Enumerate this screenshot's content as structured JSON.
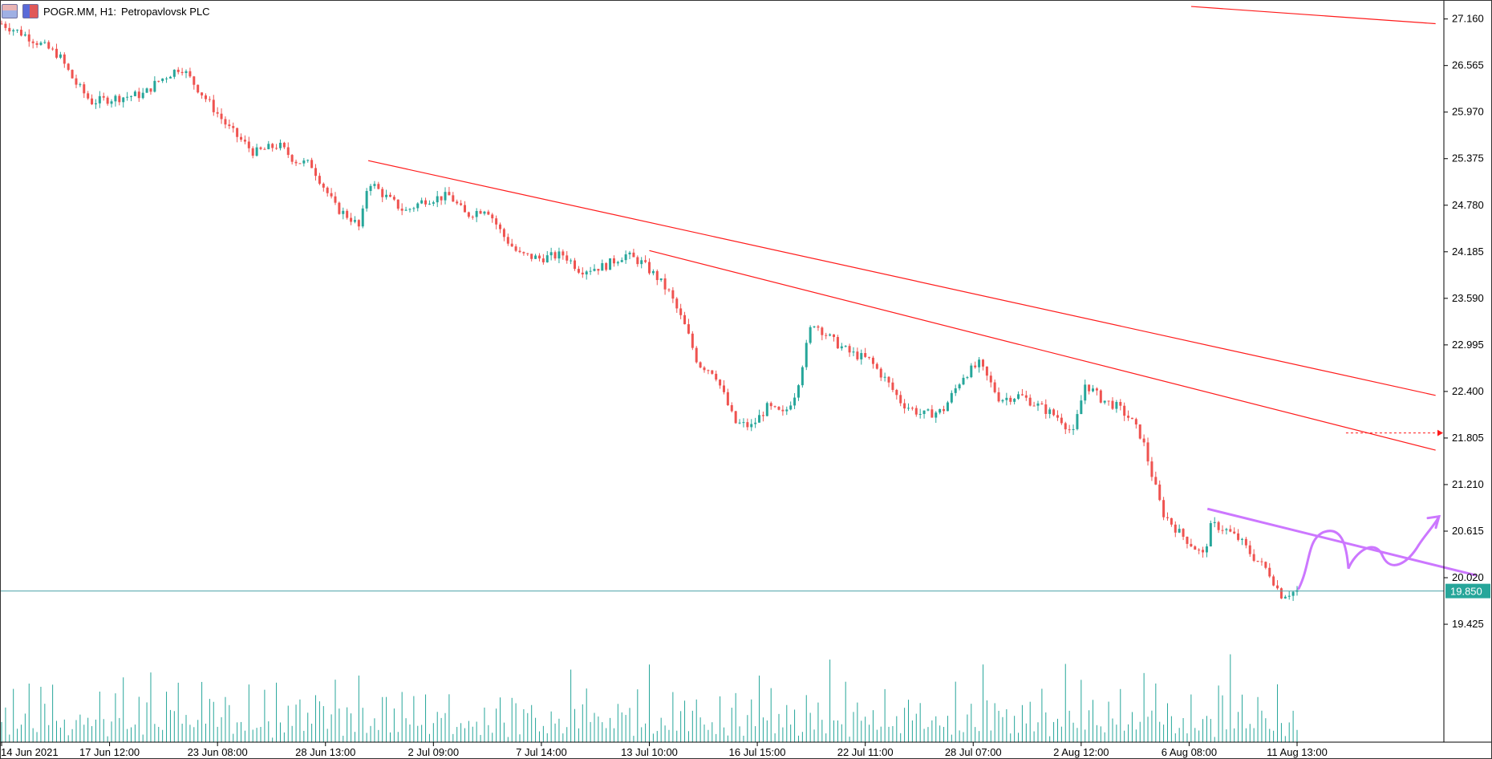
{
  "header": {
    "symbol": "POGR.MM, H1:",
    "name": "Petropavlovsk PLC"
  },
  "colors": {
    "bull": "#26a69a",
    "bear": "#ef5350",
    "trendline": "#ff1a1a",
    "drawing": "#cc77ff",
    "price_line": "#4ba3a9",
    "price_label_bg": "#26a69a",
    "axis": "#000000"
  },
  "icons": [
    "chart-window-icon",
    "color-scheme-icon"
  ],
  "chart_data": {
    "type": "candlestick",
    "timeframe": "H1",
    "ylim": [
      19.2,
      27.3
    ],
    "y_ticks": [
      "27.160",
      "26.565",
      "25.970",
      "25.375",
      "24.780",
      "24.185",
      "23.590",
      "22.995",
      "22.400",
      "21.805",
      "21.210",
      "20.615",
      "20.020",
      "19.425"
    ],
    "x_ticks": [
      "14 Jun 2021",
      "17 Jun 12:00",
      "23 Jun 08:00",
      "28 Jun 13:00",
      "2 Jul 09:00",
      "7 Jul 14:00",
      "13 Jul 10:00",
      "16 Jul 15:00",
      "22 Jul 11:00",
      "28 Jul 07:00",
      "2 Aug 12:00",
      "6 Aug 08:00",
      "11 Aug 13:00"
    ],
    "current_price": "19.850",
    "price_path": [
      [
        0,
        27.1
      ],
      [
        6,
        26.95
      ],
      [
        14,
        26.7
      ],
      [
        18,
        26.35
      ],
      [
        22,
        26.1
      ],
      [
        28,
        26.15
      ],
      [
        35,
        26.2
      ],
      [
        38,
        26.35
      ],
      [
        44,
        26.55
      ],
      [
        47,
        26.35
      ],
      [
        50,
        26.15
      ],
      [
        56,
        25.75
      ],
      [
        62,
        25.45
      ],
      [
        68,
        25.55
      ],
      [
        72,
        25.35
      ],
      [
        76,
        25.3
      ],
      [
        82,
        24.75
      ],
      [
        86,
        24.6
      ],
      [
        88,
        24.48
      ],
      [
        90,
        25.1
      ],
      [
        94,
        24.9
      ],
      [
        99,
        24.7
      ],
      [
        104,
        24.85
      ],
      [
        110,
        24.9
      ],
      [
        114,
        24.65
      ],
      [
        119,
        24.75
      ],
      [
        123,
        24.4
      ],
      [
        127,
        24.15
      ],
      [
        132,
        24.1
      ],
      [
        138,
        24.15
      ],
      [
        142,
        23.95
      ],
      [
        148,
        24.0
      ],
      [
        153,
        24.15
      ],
      [
        157,
        24.05
      ],
      [
        161,
        23.85
      ],
      [
        164,
        23.65
      ],
      [
        168,
        23.2
      ],
      [
        171,
        22.75
      ],
      [
        175,
        22.65
      ],
      [
        180,
        22.0
      ],
      [
        184,
        21.95
      ],
      [
        188,
        22.2
      ],
      [
        192,
        22.1
      ],
      [
        195,
        22.4
      ],
      [
        199,
        23.3
      ],
      [
        204,
        23.05
      ],
      [
        208,
        22.9
      ],
      [
        213,
        22.8
      ],
      [
        217,
        22.55
      ],
      [
        221,
        22.25
      ],
      [
        226,
        22.1
      ],
      [
        231,
        22.15
      ],
      [
        236,
        22.6
      ],
      [
        240,
        22.75
      ],
      [
        245,
        22.3
      ],
      [
        250,
        22.35
      ],
      [
        255,
        22.2
      ],
      [
        260,
        22.05
      ],
      [
        263,
        21.85
      ],
      [
        266,
        22.5
      ],
      [
        270,
        22.3
      ],
      [
        274,
        22.2
      ],
      [
        277,
        22.05
      ],
      [
        280,
        21.8
      ],
      [
        282,
        21.4
      ],
      [
        285,
        20.85
      ],
      [
        289,
        20.6
      ],
      [
        293,
        20.4
      ],
      [
        295,
        20.3
      ],
      [
        297,
        20.7
      ],
      [
        300,
        20.65
      ],
      [
        304,
        20.5
      ],
      [
        307,
        20.3
      ],
      [
        311,
        20.1
      ],
      [
        314,
        19.8
      ],
      [
        318,
        19.85
      ]
    ],
    "volume_max": 100,
    "volume_scale": [
      18,
      28,
      12,
      55,
      22,
      14,
      35,
      48,
      20,
      10,
      62,
      38,
      16,
      70,
      25,
      30,
      44,
      12,
      28,
      19,
      52,
      34,
      41,
      15,
      23,
      60,
      27,
      11,
      36,
      45,
      20,
      66,
      31,
      18,
      24,
      50,
      13,
      39,
      58,
      22,
      30,
      15,
      47,
      26,
      33,
      72,
      18,
      25,
      40,
      14,
      29,
      55,
      21,
      37,
      64,
      19,
      26,
      42,
      31,
      17
    ],
    "annotations": [
      {
        "kind": "trendline",
        "name": "upper-resistance",
        "from": [
          90,
          25.35
        ],
        "to": [
          352,
          22.35
        ]
      },
      {
        "kind": "trendline",
        "name": "lower-resistance",
        "from": [
          159,
          24.2
        ],
        "to": [
          352,
          21.65
        ]
      },
      {
        "kind": "trendline",
        "name": "top-edge-line",
        "from": [
          292,
          27.32
        ],
        "to": [
          352,
          27.1
        ]
      },
      {
        "kind": "trendline",
        "name": "descending-resistance-purple",
        "from": [
          296,
          20.9
        ],
        "to": [
          362,
          20.05
        ]
      },
      {
        "kind": "price-line",
        "name": "current-price-line",
        "price": 19.85
      },
      {
        "kind": "arrow-line",
        "name": "dashed-price-arrow",
        "price": 21.87,
        "from_bar": 330,
        "to_bar": 352
      }
    ],
    "grid": false
  }
}
